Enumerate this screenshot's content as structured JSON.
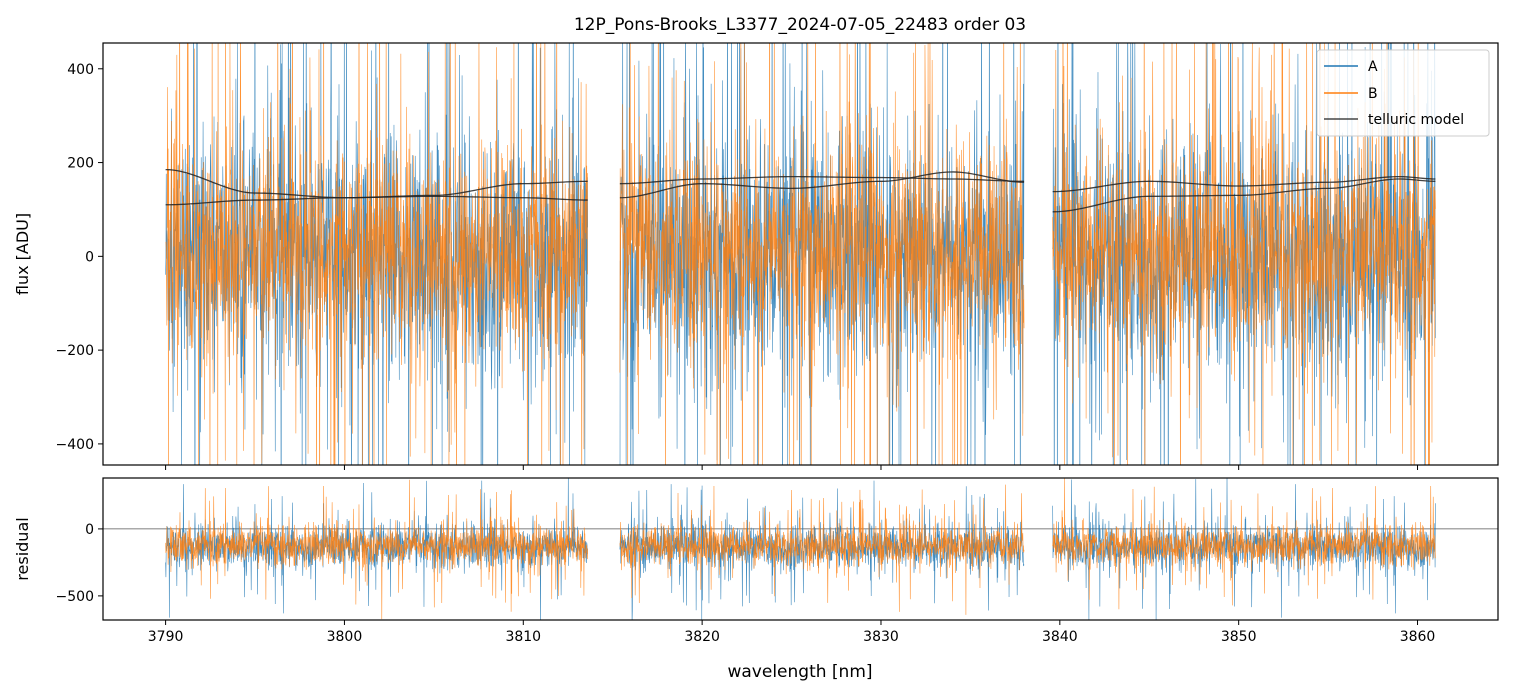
{
  "colors": {
    "A": "#1f77b4",
    "B": "#ff7f0e",
    "model": "#222222",
    "zero": "#555555"
  },
  "chart_data": [
    {
      "type": "line",
      "title": "12P_Pons-Brooks_L3377_2024-07-05_22483  order 03",
      "xlabel": "",
      "ylabel": "flux [ADU]",
      "xlim": [
        3786.5,
        3864.5
      ],
      "ylim": [
        -445,
        455
      ],
      "yticks": [
        -400,
        -200,
        0,
        200,
        400
      ],
      "ytick_labels": [
        "−400",
        "−200",
        "0",
        "200",
        "400"
      ],
      "xticks": [
        3790,
        3800,
        3810,
        3820,
        3830,
        3840,
        3850,
        3860
      ],
      "xtick_labels": [],
      "segments": [
        [
          3790.0,
          3813.6
        ],
        [
          3815.4,
          3838.0
        ],
        [
          3839.6,
          3861.0
        ]
      ],
      "legend": {
        "placement": "top-right",
        "entries": [
          "A",
          "B",
          "telluric model"
        ]
      },
      "series": [
        {
          "name": "A",
          "kind": "noise",
          "center": 0,
          "spread": 230,
          "outlier_rate": 0.07
        },
        {
          "name": "B",
          "kind": "noise",
          "center": 10,
          "spread": 200,
          "outlier_rate": 0.08
        },
        {
          "name": "telluric model",
          "kind": "curves",
          "curves": [
            {
              "segment": 0,
              "x": [
                3790,
                3795,
                3800,
                3805,
                3810,
                3813.6
              ],
              "y": [
                185,
                135,
                125,
                130,
                155,
                160
              ]
            },
            {
              "segment": 0,
              "x": [
                3790,
                3795,
                3800,
                3805,
                3810,
                3813.6
              ],
              "y": [
                110,
                120,
                125,
                128,
                125,
                120
              ]
            },
            {
              "segment": 1,
              "x": [
                3815.4,
                3820,
                3825,
                3830,
                3834,
                3838
              ],
              "y": [
                125,
                155,
                145,
                160,
                180,
                158
              ]
            },
            {
              "segment": 1,
              "x": [
                3815.4,
                3820,
                3825,
                3830,
                3834,
                3838
              ],
              "y": [
                155,
                165,
                170,
                168,
                165,
                160
              ]
            },
            {
              "segment": 2,
              "x": [
                3839.6,
                3845,
                3850,
                3855,
                3859,
                3861
              ],
              "y": [
                95,
                128,
                130,
                145,
                165,
                160
              ]
            },
            {
              "segment": 2,
              "x": [
                3839.6,
                3845,
                3850,
                3855,
                3859,
                3861
              ],
              "y": [
                138,
                160,
                150,
                158,
                170,
                165
              ]
            }
          ]
        }
      ]
    },
    {
      "type": "line",
      "title": "",
      "xlabel": "wavelength [nm]",
      "ylabel": "residual",
      "xlim": [
        3786.5,
        3864.5
      ],
      "ylim": [
        -680,
        380
      ],
      "yticks": [
        -500,
        0
      ],
      "ytick_labels": [
        "−500",
        "0"
      ],
      "xticks": [
        3790,
        3800,
        3810,
        3820,
        3830,
        3840,
        3850,
        3860
      ],
      "xtick_labels": [
        "3790",
        "3800",
        "3810",
        "3820",
        "3830",
        "3840",
        "3850",
        "3860"
      ],
      "segments": [
        [
          3790.0,
          3813.6
        ],
        [
          3815.4,
          3838.0
        ],
        [
          3839.6,
          3861.0
        ]
      ],
      "zero_line": 0,
      "series": [
        {
          "name": "A",
          "kind": "noise",
          "center": -135,
          "spread": 150,
          "outlier_rate": 0.05
        },
        {
          "name": "B",
          "kind": "noise",
          "center": -125,
          "spread": 135,
          "outlier_rate": 0.06
        }
      ]
    }
  ]
}
